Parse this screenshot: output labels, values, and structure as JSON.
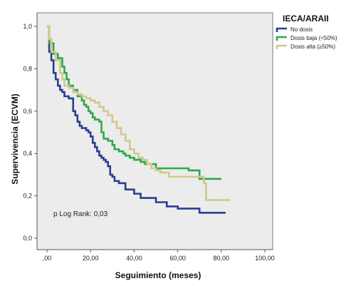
{
  "chart_data": {
    "type": "line",
    "step": true,
    "xlabel": "Seguimiento (meses)",
    "ylabel": "Supervivencia (ECVM)",
    "xlim": [
      0,
      100
    ],
    "ylim": [
      0,
      1
    ],
    "x_ticks": [
      0,
      20,
      40,
      60,
      80,
      100
    ],
    "x_tick_labels": [
      ",00",
      "20,00",
      "40,00",
      "60,00",
      "80,00",
      "100,00"
    ],
    "y_ticks": [
      0,
      0.2,
      0.4,
      0.6,
      0.8,
      1.0
    ],
    "y_tick_labels": [
      "0,0",
      "0,2",
      "0,4",
      "0,6",
      "0,8",
      "1,0"
    ],
    "grid": false,
    "background": "#ececec",
    "legend": {
      "title": "IECA/ARAII",
      "placement": "top-right-outside"
    },
    "annotation": "p Log Rank: 0,03",
    "series": [
      {
        "name": "No dosis",
        "color": "#2a3f8f",
        "points": [
          [
            0,
            1.0
          ],
          [
            1,
            0.88
          ],
          [
            2,
            0.84
          ],
          [
            3,
            0.78
          ],
          [
            4,
            0.75
          ],
          [
            5,
            0.72
          ],
          [
            6,
            0.7
          ],
          [
            7,
            0.69
          ],
          [
            8,
            0.67
          ],
          [
            10,
            0.66
          ],
          [
            12,
            0.6
          ],
          [
            13,
            0.58
          ],
          [
            14,
            0.55
          ],
          [
            15,
            0.53
          ],
          [
            16,
            0.52
          ],
          [
            18,
            0.51
          ],
          [
            19,
            0.5
          ],
          [
            20,
            0.48
          ],
          [
            21,
            0.45
          ],
          [
            22,
            0.43
          ],
          [
            23,
            0.41
          ],
          [
            24,
            0.39
          ],
          [
            25,
            0.38
          ],
          [
            26,
            0.37
          ],
          [
            27,
            0.36
          ],
          [
            28,
            0.34
          ],
          [
            29,
            0.3
          ],
          [
            30,
            0.29
          ],
          [
            31,
            0.27
          ],
          [
            33,
            0.26
          ],
          [
            36,
            0.23
          ],
          [
            40,
            0.21
          ],
          [
            43,
            0.19
          ],
          [
            50,
            0.17
          ],
          [
            55,
            0.15
          ],
          [
            60,
            0.14
          ],
          [
            64,
            0.14
          ],
          [
            70,
            0.12
          ],
          [
            72,
            0.12
          ],
          [
            82,
            0.12
          ]
        ]
      },
      {
        "name": "Dosis baja (<50%)",
        "color": "#2fa84a",
        "points": [
          [
            0,
            1.0
          ],
          [
            1,
            0.92
          ],
          [
            3,
            0.87
          ],
          [
            5,
            0.85
          ],
          [
            7,
            0.81
          ],
          [
            8,
            0.78
          ],
          [
            9,
            0.75
          ],
          [
            10,
            0.72
          ],
          [
            12,
            0.7
          ],
          [
            14,
            0.67
          ],
          [
            16,
            0.65
          ],
          [
            17,
            0.63
          ],
          [
            18,
            0.62
          ],
          [
            19,
            0.6
          ],
          [
            20,
            0.59
          ],
          [
            21,
            0.57
          ],
          [
            22,
            0.56
          ],
          [
            24,
            0.55
          ],
          [
            25,
            0.5
          ],
          [
            26,
            0.47
          ],
          [
            28,
            0.46
          ],
          [
            30,
            0.44
          ],
          [
            31,
            0.42
          ],
          [
            33,
            0.41
          ],
          [
            35,
            0.4
          ],
          [
            36,
            0.39
          ],
          [
            38,
            0.38
          ],
          [
            40,
            0.37
          ],
          [
            43,
            0.36
          ],
          [
            45,
            0.35
          ],
          [
            50,
            0.33
          ],
          [
            55,
            0.33
          ],
          [
            65,
            0.32
          ],
          [
            70,
            0.28
          ],
          [
            80,
            0.28
          ]
        ]
      },
      {
        "name": "Dosis alta (≥50%)",
        "color": "#d2c88e",
        "points": [
          [
            0,
            1.0
          ],
          [
            1,
            0.94
          ],
          [
            2,
            0.88
          ],
          [
            4,
            0.84
          ],
          [
            6,
            0.78
          ],
          [
            7,
            0.75
          ],
          [
            8,
            0.72
          ],
          [
            10,
            0.71
          ],
          [
            12,
            0.69
          ],
          [
            14,
            0.68
          ],
          [
            16,
            0.67
          ],
          [
            18,
            0.66
          ],
          [
            20,
            0.65
          ],
          [
            22,
            0.64
          ],
          [
            24,
            0.62
          ],
          [
            26,
            0.6
          ],
          [
            28,
            0.58
          ],
          [
            30,
            0.55
          ],
          [
            32,
            0.52
          ],
          [
            34,
            0.49
          ],
          [
            36,
            0.46
          ],
          [
            38,
            0.42
          ],
          [
            40,
            0.4
          ],
          [
            42,
            0.38
          ],
          [
            44,
            0.37
          ],
          [
            46,
            0.35
          ],
          [
            48,
            0.33
          ],
          [
            50,
            0.32
          ],
          [
            52,
            0.31
          ],
          [
            56,
            0.29
          ],
          [
            62,
            0.29
          ],
          [
            71,
            0.29
          ],
          [
            72,
            0.26
          ],
          [
            73,
            0.18
          ],
          [
            84,
            0.18
          ]
        ]
      }
    ]
  }
}
